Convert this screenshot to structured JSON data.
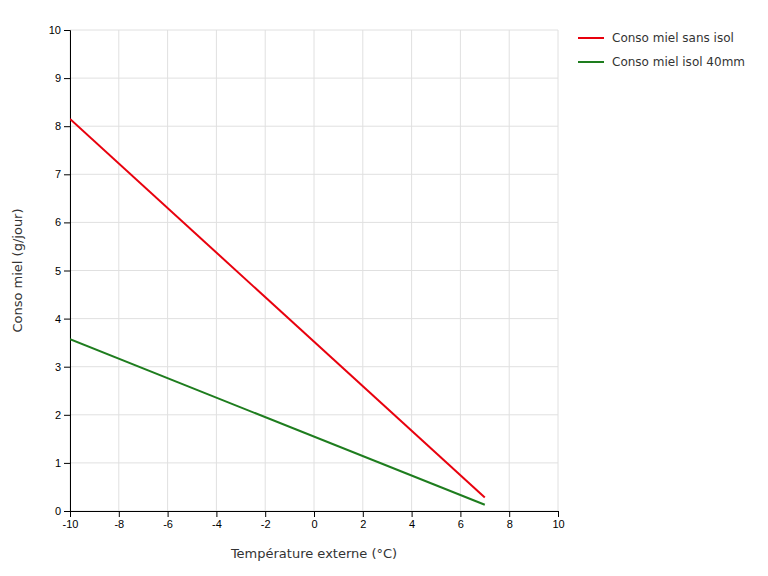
{
  "chart_data": {
    "type": "line",
    "xlabel": "Température externe (°C)",
    "ylabel": "Conso miel (g/jour)",
    "x": [
      -10,
      7
    ],
    "series": [
      {
        "name": "Conso miel sans isol",
        "color": "#e8000d",
        "values": [
          8.15,
          0.28
        ]
      },
      {
        "name": "Conso miel isol 40mm",
        "color": "#1e7d1e",
        "values": [
          3.57,
          0.13
        ]
      }
    ],
    "xlim": [
      -10,
      10
    ],
    "ylim": [
      0,
      10
    ],
    "xticks": [
      -10,
      -8,
      -6,
      -4,
      -2,
      0,
      2,
      4,
      6,
      8,
      10
    ],
    "yticks": [
      0,
      1,
      2,
      3,
      4,
      5,
      6,
      7,
      8,
      9,
      10
    ],
    "grid": true,
    "legend": "right"
  }
}
